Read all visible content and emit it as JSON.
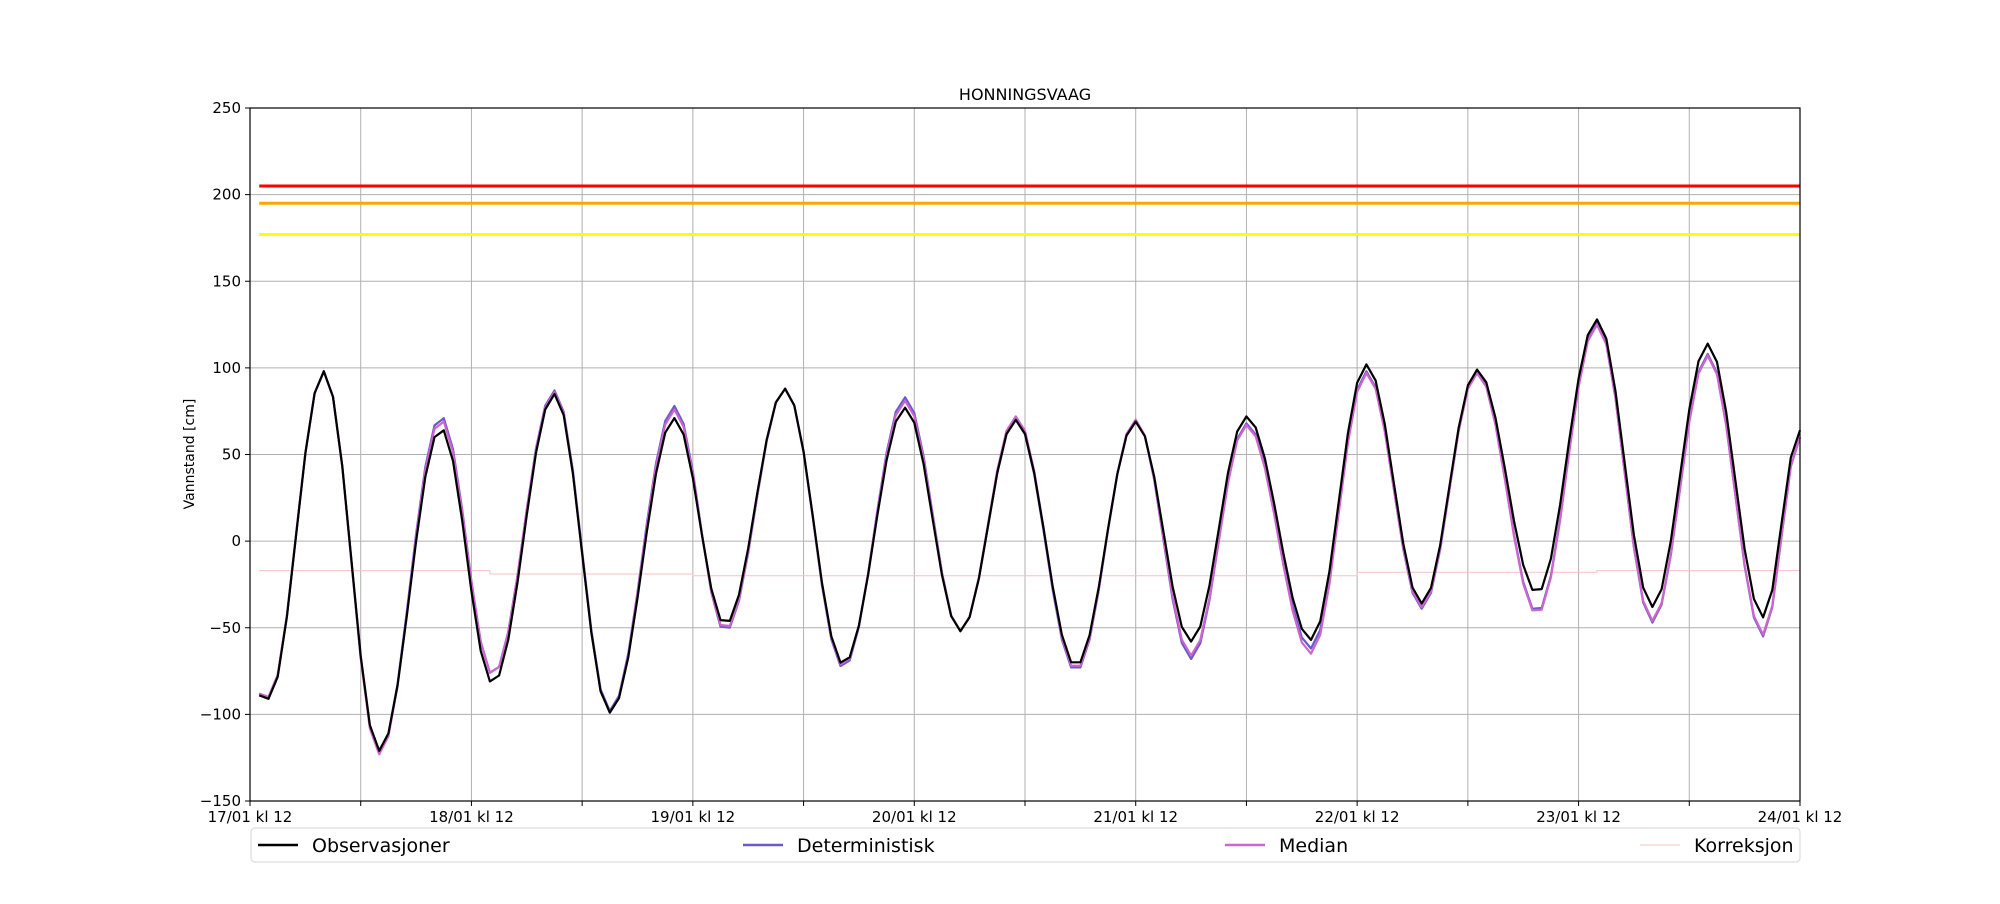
{
  "chart_data": {
    "type": "line",
    "title": "HONNINGSVAAG",
    "xlabel": "",
    "ylabel": "Vannstand [cm]",
    "x_unit": "hours since 17/01 kl 12",
    "xlim": [
      0,
      168
    ],
    "ylim": [
      -150,
      250
    ],
    "grid": true,
    "legend_placement": "below",
    "y_ticks": [
      -150,
      -100,
      -50,
      0,
      50,
      100,
      150,
      200,
      250
    ],
    "y_tick_labels": [
      "−150",
      "−100",
      "−50",
      "0",
      "50",
      "100",
      "150",
      "200",
      "250"
    ],
    "x_ticks": [
      0,
      24,
      48,
      72,
      96,
      120,
      144,
      168
    ],
    "x_tick_labels": [
      "17/01 kl 12",
      "18/01 kl 12",
      "19/01 kl 12",
      "20/01 kl 12",
      "21/01 kl 12",
      "22/01 kl 12",
      "23/01 kl 12",
      "24/01 kl 12"
    ],
    "x_minor_ticks": [
      12,
      36,
      60,
      84,
      108,
      132,
      156
    ],
    "thresholds": [
      {
        "value": 205,
        "color": "#ff0000"
      },
      {
        "value": 195,
        "color": "#ffa500"
      },
      {
        "value": 177,
        "color": "#ffff00"
      }
    ],
    "series": [
      {
        "name": "Observasjoner",
        "color": "#000000",
        "extrema": [
          [
            1,
            -89
          ],
          [
            2,
            -91
          ],
          [
            8,
            98
          ],
          [
            14,
            -121
          ],
          [
            20.7,
            65
          ],
          [
            26.3,
            -82
          ],
          [
            33,
            85
          ],
          [
            39,
            -99
          ],
          [
            46,
            71
          ],
          [
            51.5,
            -48
          ],
          [
            58,
            88
          ],
          [
            64.3,
            -71
          ],
          [
            71,
            77
          ],
          [
            77,
            -52
          ],
          [
            83,
            70
          ],
          [
            89.5,
            -72
          ],
          [
            96,
            69
          ],
          [
            102,
            -58
          ],
          [
            108,
            72
          ],
          [
            115,
            -57
          ],
          [
            121,
            102
          ],
          [
            127,
            -36
          ],
          [
            133,
            99
          ],
          [
            139.5,
            -30
          ],
          [
            146,
            128
          ],
          [
            152,
            -38
          ],
          [
            158,
            114
          ],
          [
            164,
            -44
          ],
          [
            168,
            64
          ]
        ]
      },
      {
        "name": "Deterministisk",
        "color": "#6a5acd",
        "extrema": [
          [
            1,
            -88
          ],
          [
            2,
            -90
          ],
          [
            8,
            98
          ],
          [
            14,
            -122
          ],
          [
            20.7,
            72
          ],
          [
            26.3,
            -77
          ],
          [
            33,
            87
          ],
          [
            39,
            -98
          ],
          [
            46,
            78
          ],
          [
            51.5,
            -52
          ],
          [
            58,
            88
          ],
          [
            64.3,
            -73
          ],
          [
            71,
            83
          ],
          [
            77,
            -52
          ],
          [
            83,
            70
          ],
          [
            89.5,
            -75
          ],
          [
            96,
            70
          ],
          [
            102,
            -68
          ],
          [
            108,
            68
          ],
          [
            115,
            -62
          ],
          [
            121,
            98
          ],
          [
            127,
            -39
          ],
          [
            133,
            98
          ],
          [
            139.5,
            -41
          ],
          [
            146,
            126
          ],
          [
            152,
            -47
          ],
          [
            158,
            108
          ],
          [
            164,
            -55
          ],
          [
            168,
            60
          ]
        ]
      },
      {
        "name": "Median",
        "color": "#cc66cc",
        "extrema": [
          [
            1,
            -88
          ],
          [
            2,
            -90
          ],
          [
            8,
            98
          ],
          [
            14,
            -123
          ],
          [
            20.7,
            70
          ],
          [
            26.3,
            -77
          ],
          [
            33,
            86
          ],
          [
            39,
            -99
          ],
          [
            46,
            76
          ],
          [
            51.5,
            -51
          ],
          [
            58,
            88
          ],
          [
            64.3,
            -72
          ],
          [
            71,
            81
          ],
          [
            77,
            -52
          ],
          [
            83,
            72
          ],
          [
            89.5,
            -74
          ],
          [
            96,
            70
          ],
          [
            102,
            -66
          ],
          [
            108,
            67
          ],
          [
            115,
            -65
          ],
          [
            121,
            97
          ],
          [
            127,
            -38
          ],
          [
            133,
            97
          ],
          [
            139.5,
            -42
          ],
          [
            146,
            125
          ],
          [
            152,
            -46
          ],
          [
            158,
            107
          ],
          [
            164,
            -54
          ],
          [
            168,
            60
          ]
        ]
      },
      {
        "name": "Korreksjon",
        "color": "#f4c2c2",
        "steps": [
          [
            1,
            -17
          ],
          [
            26,
            -19
          ],
          [
            48,
            -20
          ],
          [
            120,
            -18
          ],
          [
            146,
            -17
          ],
          [
            168,
            -17
          ]
        ]
      }
    ]
  }
}
